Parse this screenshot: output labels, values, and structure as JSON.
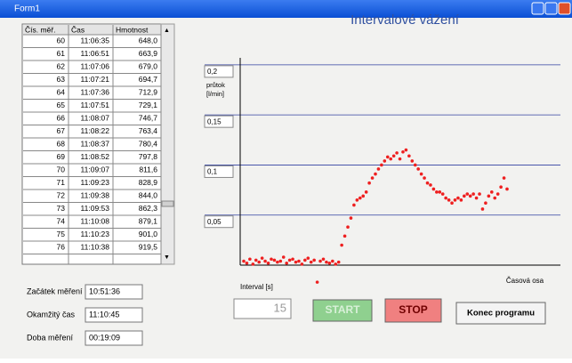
{
  "window": {
    "title": "Form1"
  },
  "table": {
    "headers": [
      "Čís. měř.",
      "Čas",
      "Hmotnost"
    ],
    "rows": [
      [
        "60",
        "11:06:35",
        "648,0"
      ],
      [
        "61",
        "11:06:51",
        "663,9"
      ],
      [
        "62",
        "11:07:06",
        "679,0"
      ],
      [
        "63",
        "11:07:21",
        "694,7"
      ],
      [
        "64",
        "11:07:36",
        "712,9"
      ],
      [
        "65",
        "11:07:51",
        "729,1"
      ],
      [
        "66",
        "11:08:07",
        "746,7"
      ],
      [
        "67",
        "11:08:22",
        "763,4"
      ],
      [
        "68",
        "11:08:37",
        "780,4"
      ],
      [
        "69",
        "11:08:52",
        "797,8"
      ],
      [
        "70",
        "11:09:07",
        "811,6"
      ],
      [
        "71",
        "11:09:23",
        "828,9"
      ],
      [
        "72",
        "11:09:38",
        "844,0"
      ],
      [
        "73",
        "11:09:53",
        "862,3"
      ],
      [
        "74",
        "11:10:08",
        "879,1"
      ],
      [
        "75",
        "11:10:23",
        "901,0"
      ],
      [
        "76",
        "11:10:38",
        "919,5"
      ]
    ]
  },
  "fields": [
    {
      "label": "Začátek měření",
      "value": "10:51:36"
    },
    {
      "label": "Okamžitý čas",
      "value": "11:10:45"
    },
    {
      "label": "Doba měření",
      "value": "00:19:09"
    }
  ],
  "interval": {
    "label": "Interval [s]",
    "value": "15"
  },
  "buttons": [
    "START",
    "STOP",
    "Konec programu"
  ],
  "chart_data": {
    "type": "scatter",
    "title": "Intervalové vážení",
    "y_label": "průtok [l/min]",
    "x_label": "Časová osa",
    "color": "#ee2020",
    "values": [
      0.004,
      0.002,
      0.006,
      0.001,
      0.005,
      0.003,
      0.007,
      0.004,
      0.002,
      0.006,
      0.005,
      0.003,
      0.004,
      0.008,
      0.002,
      0.005,
      0.006,
      0.003,
      0.004,
      0.001,
      0.005,
      0.007,
      0.003,
      0.005,
      -0.017,
      0.004,
      0.006,
      0.003,
      0.002,
      0.004,
      0.001,
      0.003,
      0.02,
      0.029,
      0.038,
      0.047,
      0.06,
      0.065,
      0.067,
      0.069,
      0.073,
      0.082,
      0.087,
      0.091,
      0.096,
      0.1,
      0.104,
      0.108,
      0.106,
      0.109,
      0.112,
      0.106,
      0.113,
      0.115,
      0.109,
      0.104,
      0.1,
      0.096,
      0.091,
      0.087,
      0.082,
      0.08,
      0.076,
      0.073,
      0.073,
      0.071,
      0.067,
      0.065,
      0.062,
      0.065,
      0.067,
      0.065,
      0.069,
      0.071,
      0.069,
      0.071,
      0.067,
      0.071,
      0.056,
      0.062,
      0.069,
      0.073,
      0.067,
      0.071,
      0.078,
      0.087,
      0.076
    ],
    "ylim": [
      0,
      0.207
    ],
    "yticks": [
      {
        "value": 0.05,
        "label": "0,05"
      },
      {
        "value": 0.1,
        "label": "0,1"
      },
      {
        "value": 0.15,
        "label": "0,15"
      },
      {
        "value": 0.2,
        "label": "0,2"
      }
    ],
    "grid": true
  }
}
